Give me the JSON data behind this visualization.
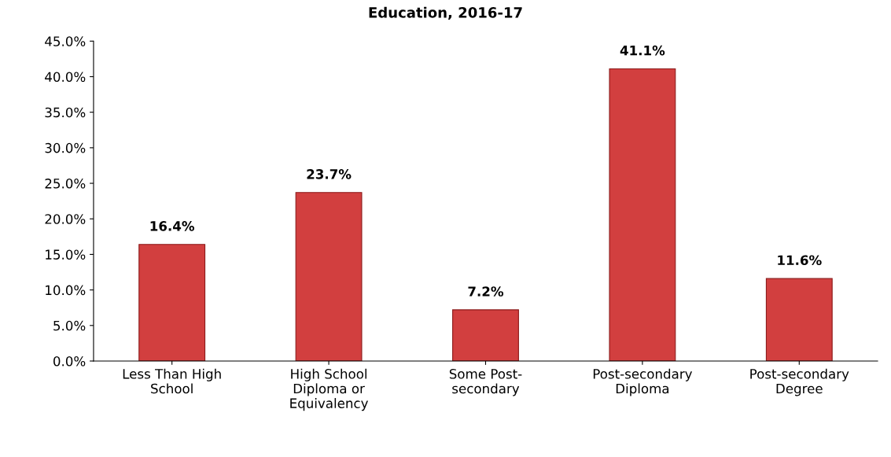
{
  "chart_data": {
    "type": "bar",
    "title": "Education, 2016-17",
    "categories": [
      "Less Than High\nSchool",
      "High School\nDiploma or\nEquivalency",
      "Some Post-\nsecondary",
      "Post-secondary\nDiploma",
      "Post-secondary\nDegree"
    ],
    "values": [
      16.4,
      23.7,
      7.2,
      41.1,
      11.6
    ],
    "value_labels": [
      "16.4%",
      "23.7%",
      "7.2%",
      "41.1%",
      "11.6%"
    ],
    "color": "#d23f3f",
    "ylim": [
      0,
      45
    ],
    "yticks": [
      {
        "value": 0,
        "label": "0.0%"
      },
      {
        "value": 5,
        "label": "5.0%"
      },
      {
        "value": 10,
        "label": "10.0%"
      },
      {
        "value": 15,
        "label": "15.0%"
      },
      {
        "value": 20,
        "label": "20.0%"
      },
      {
        "value": 25,
        "label": "25.0%"
      },
      {
        "value": 30,
        "label": "30.0%"
      },
      {
        "value": 35,
        "label": "35.0%"
      },
      {
        "value": 40,
        "label": "40.0%"
      },
      {
        "value": 45,
        "label": "45.0%"
      }
    ],
    "grid": false,
    "legend": false
  }
}
